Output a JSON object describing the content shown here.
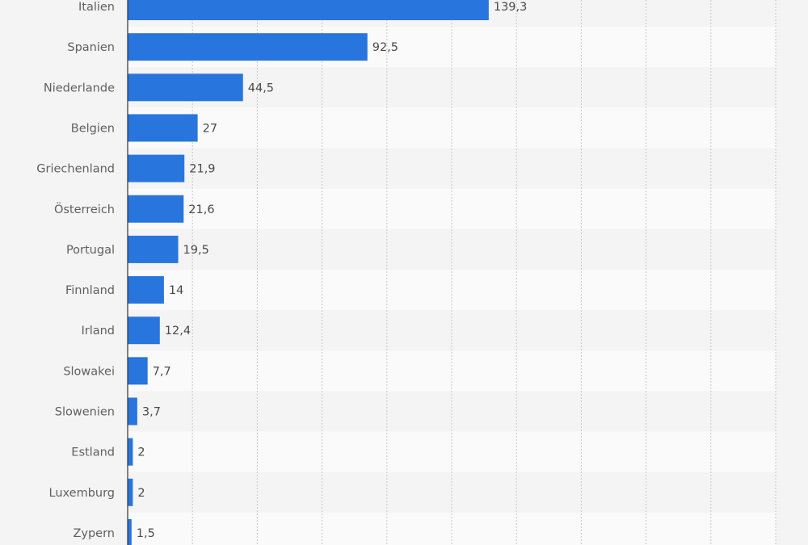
{
  "chart_data": {
    "type": "bar",
    "orientation": "horizontal",
    "categories": [
      "Italien",
      "Spanien",
      "Niederlande",
      "Belgien",
      "Griechenland",
      "Österreich",
      "Portugal",
      "Finnland",
      "Irland",
      "Slowakei",
      "Slowenien",
      "Estland",
      "Luxemburg",
      "Zypern"
    ],
    "values": [
      139.3,
      92.5,
      44.5,
      27,
      21.9,
      21.6,
      19.5,
      14,
      12.4,
      7.7,
      3.7,
      2,
      2,
      1.5
    ],
    "value_labels": [
      "139,3",
      "92,5",
      "44,5",
      "27",
      "21,9",
      "21,6",
      "19,5",
      "14",
      "12,4",
      "7,7",
      "3,7",
      "2",
      "2",
      "1,5"
    ],
    "xlim": [
      0,
      250
    ],
    "grid": true,
    "colors": {
      "bar": "#2876dd",
      "stripe_dark": "#f4f4f4",
      "stripe_light": "#fafafa",
      "grid": "#c8c8c8",
      "axis": "#333333"
    }
  }
}
